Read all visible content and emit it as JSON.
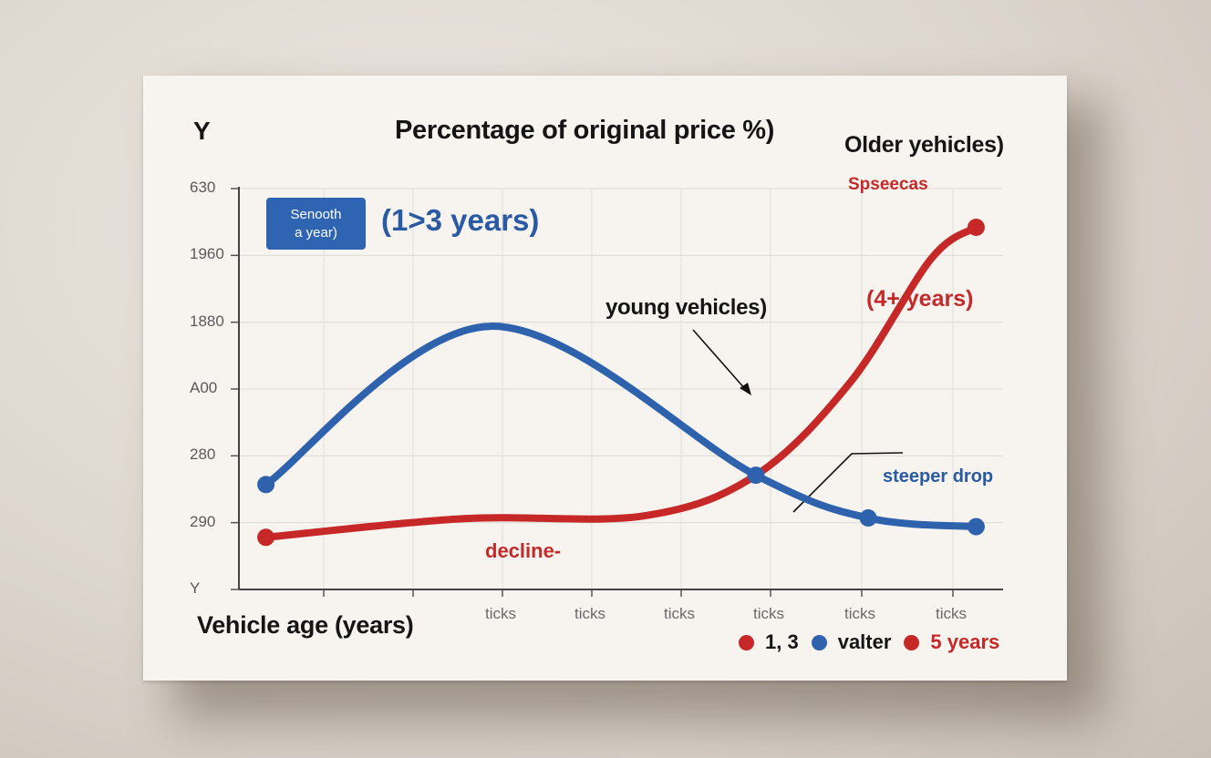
{
  "chart_data": {
    "type": "line",
    "y_axis_letter": "Y",
    "title": "Percentage of original price %)",
    "xlabel": "Vehicle age (years)",
    "y_ticks": [
      "630",
      "1960",
      "1880",
      "A00",
      "280",
      "290",
      "Y"
    ],
    "x_ticks": [
      "ticks",
      "ticks",
      "ticks",
      "ticks",
      "ticks",
      "ticks"
    ],
    "ylim": [
      0,
      6
    ],
    "xlim": [
      0,
      8.5
    ],
    "grid": true,
    "series": [
      {
        "name": "1,3",
        "color": "#2f62ad",
        "smooth": true,
        "x": [
          0.3,
          2.8,
          5.75,
          7.0,
          8.2
        ],
        "y": [
          1.57,
          3.94,
          1.71,
          1.07,
          0.94
        ],
        "markers": [
          0,
          2,
          3,
          4
        ]
      },
      {
        "name": "5 years",
        "color": "#c62828",
        "smooth": true,
        "x": [
          0.3,
          2.5,
          4.5,
          5.75,
          6.8,
          7.7,
          8.2
        ],
        "y": [
          0.78,
          1.06,
          1.1,
          1.71,
          3.1,
          4.95,
          5.42
        ],
        "markers": [
          0,
          6
        ]
      }
    ],
    "legend": {
      "placement": "bottom-right",
      "entries": [
        {
          "label": "1, 3",
          "color": "#c62828"
        },
        {
          "label": "valter",
          "color": "#2f62ad"
        },
        {
          "label": "5 years",
          "color": "#c62828"
        }
      ]
    },
    "annotations": {
      "badge_line1": "Senooth",
      "badge_line2": "a year)",
      "blue_note": "(1>3 years)",
      "older_vehicles": "Older yehicles)",
      "red_top": "Spseecas",
      "red_years": "(4+ years)",
      "young_vehicles": "young vehicles)",
      "steeper_drop": "steeper drop",
      "decline": "decline-"
    }
  },
  "colors": {
    "blue": "#2f62ad",
    "red": "#c62828",
    "paper": "#f7f4ef"
  }
}
